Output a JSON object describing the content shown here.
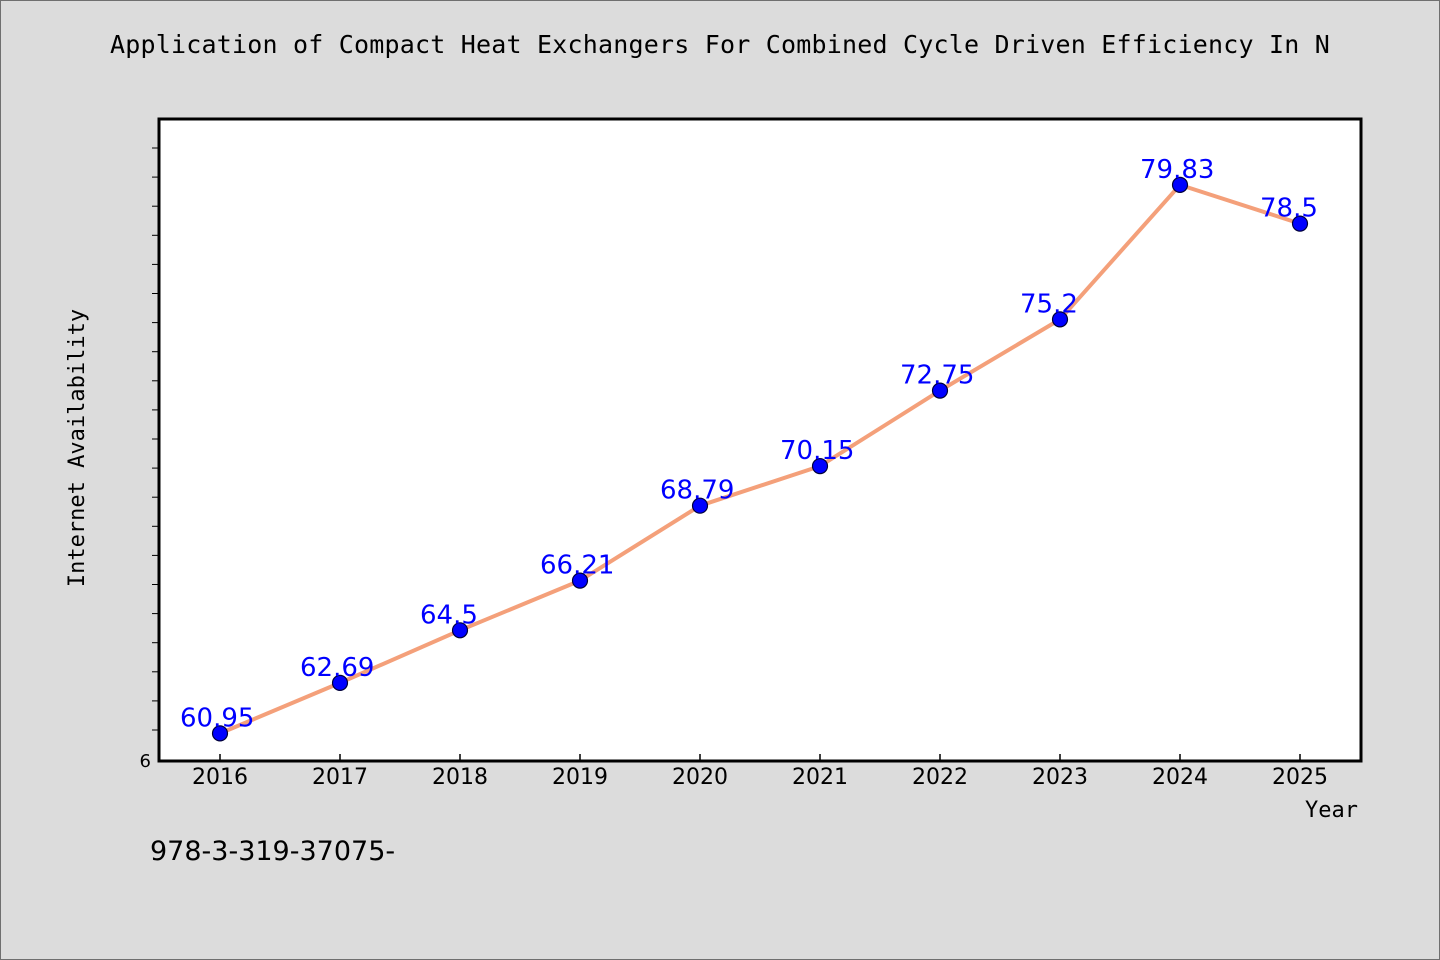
{
  "page": {
    "title": "Application of Compact Heat Exchangers For Combined Cycle Driven Efficiency In N",
    "footer": "978-3-319-37075-"
  },
  "chart_data": {
    "type": "line",
    "title": "Application of Compact Heat Exchangers For Combined Cycle Driven Efficiency In N",
    "xlabel": "Year",
    "ylabel": "Internet Availability",
    "categories": [
      "2016",
      "2017",
      "2018",
      "2019",
      "2020",
      "2021",
      "2022",
      "2023",
      "2024",
      "2025"
    ],
    "series": [
      {
        "values": [
          60.95,
          62.69,
          64.5,
          66.21,
          68.79,
          70.15,
          72.75,
          75.2,
          79.83,
          78.5
        ],
        "data_labels": [
          "60.95",
          "62.69",
          "64.5",
          "66.21",
          "68.79",
          "70.15",
          "72.75",
          "75.2",
          "79.83",
          "78.5"
        ]
      }
    ],
    "y_tick_labels": [
      "6"
    ],
    "ylim": [
      60,
      82.1
    ],
    "grid": false,
    "legend": "none",
    "colors": {
      "line": "#f4a07a",
      "marker": "#0000ff",
      "marker_edge": "#00003a",
      "data_label": "#0000ff",
      "plot_background": "#ffffff",
      "figure_background": "#dcdcdc"
    }
  }
}
